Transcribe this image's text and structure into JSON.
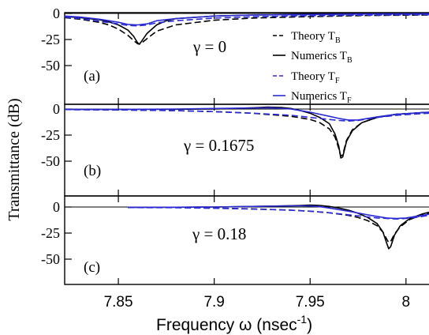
{
  "chart_data": {
    "type": "line",
    "ylabel": "Transmittance (dB)",
    "xlabel": "Frequency ω (nsec",
    "xlabel_exp": "-1",
    "xlabel_close": ")",
    "xlim": [
      7.822,
      8.012
    ],
    "x_ticks": [
      "7.85",
      "7.9",
      "7.95",
      "8"
    ],
    "x_tick_values": [
      7.85,
      7.9,
      7.95,
      8.0
    ],
    "ylim": [
      -57,
      2
    ],
    "y_ticks": [
      "0",
      "-25",
      "-50"
    ],
    "y_tick_values": [
      0,
      -25,
      -50
    ],
    "colors": {
      "theory_B": "#000000",
      "numerics_B": "#000000",
      "theory_F": "#2b2bd6",
      "numerics_F": "#2b2bd6"
    },
    "legend": {
      "placement": "top-right of panel (a)",
      "entries": [
        {
          "text": "Theory T",
          "sub": "B",
          "style": "dashed",
          "color": "#000000"
        },
        {
          "text": "Numerics T",
          "sub": "B",
          "style": "solid",
          "color": "#000000"
        },
        {
          "text": "Theory T",
          "sub": "F",
          "style": "dashed",
          "color": "#2b2bd6"
        },
        {
          "text": "Numerics T",
          "sub": "F",
          "style": "solid",
          "color": "#2b2bd6"
        }
      ]
    },
    "panels": [
      {
        "label": "(a)",
        "gamma": "γ = 0",
        "series": [
          {
            "style": "dashed",
            "color": "#000000",
            "x": [
              7.822,
              7.83,
              7.84,
              7.845,
              7.85,
              7.855,
              7.858,
              7.86,
              7.861,
              7.862,
              7.865,
              7.87,
              7.88,
              7.9,
              7.92,
              7.95,
              7.98,
              8.012
            ],
            "y": [
              -4,
              -5.5,
              -8.5,
              -11,
              -15,
              -21,
              -26,
              -29,
              -29.5,
              -28.5,
              -24,
              -17,
              -11,
              -6.5,
              -4.5,
              -3,
              -2,
              -1.5
            ]
          },
          {
            "style": "solid",
            "color": "#000000",
            "x": [
              7.822,
              7.83,
              7.84,
              7.845,
              7.85,
              7.855,
              7.858,
              7.86,
              7.861,
              7.862,
              7.865,
              7.87,
              7.875,
              7.88,
              7.9,
              7.92,
              7.95,
              7.98,
              8.012
            ],
            "y": [
              -3,
              -4,
              -6,
              -8,
              -11,
              -16,
              -22,
              -28,
              -29.5,
              -27,
              -19,
              -11,
              -7,
              -5,
              -2.5,
              -1.5,
              -1,
              -0.5,
              -0.3
            ]
          },
          {
            "style": "dashed",
            "color": "#2b2bd6",
            "x": [
              7.822,
              7.83,
              7.84,
              7.85,
              7.855,
              7.86,
              7.865,
              7.87,
              7.88,
              7.9,
              7.92,
              7.95,
              7.98,
              8.012
            ],
            "y": [
              -3.5,
              -5,
              -7.5,
              -10,
              -11.5,
              -12,
              -11,
              -9,
              -7,
              -4.5,
              -3.2,
              -2.2,
              -1.6,
              -1.2
            ]
          },
          {
            "style": "solid",
            "color": "#2b2bd6",
            "x": [
              7.822,
              7.83,
              7.84,
              7.85,
              7.855,
              7.86,
              7.865,
              7.87,
              7.88,
              7.9,
              7.92,
              7.95,
              7.98,
              8.012
            ],
            "y": [
              -2.5,
              -3.5,
              -5.5,
              -8.5,
              -10.5,
              -11,
              -10,
              -7,
              -5,
              -2.5,
              -1.5,
              -1,
              -0.5,
              -0.3
            ]
          }
        ]
      },
      {
        "label": "(b)",
        "gamma": "γ = 0.1675",
        "series": [
          {
            "style": "dashed",
            "color": "#000000",
            "x": [
              7.822,
              7.85,
              7.88,
              7.9,
              7.92,
              7.94,
              7.95,
              7.955,
              7.96,
              7.963,
              7.965,
              7.966,
              7.967,
              7.969,
              7.972,
              7.977,
              7.985,
              7.995,
              8.012
            ],
            "y": [
              -0.5,
              -0.8,
              -1.5,
              -2.5,
              -4,
              -7,
              -10,
              -13,
              -19,
              -27,
              -38,
              -45,
              -44,
              -30,
              -20,
              -13,
              -8,
              -5,
              -3
            ]
          },
          {
            "style": "solid",
            "color": "#000000",
            "x": [
              7.822,
              7.85,
              7.88,
              7.9,
              7.92,
              7.928,
              7.935,
              7.94,
              7.945,
              7.95,
              7.955,
              7.96,
              7.963,
              7.965,
              7.966,
              7.967,
              7.969,
              7.972,
              7.977,
              7.985,
              7.995,
              8.012
            ],
            "y": [
              -0.3,
              -0.3,
              -0.2,
              0,
              1.2,
              1.8,
              1.5,
              0.5,
              -1.5,
              -4,
              -8,
              -14,
              -24,
              -36,
              -47,
              -46,
              -31,
              -21,
              -13,
              -8,
              -5,
              -3
            ]
          },
          {
            "style": "dashed",
            "color": "#2b2bd6",
            "x": [
              7.822,
              7.85,
              7.88,
              7.9,
              7.92,
              7.94,
              7.95,
              7.96,
              7.965,
              7.97,
              7.975,
              7.98,
              7.985,
              7.995,
              8.012
            ],
            "y": [
              -0.5,
              -0.8,
              -1.5,
              -2.5,
              -4,
              -6,
              -8,
              -10,
              -11,
              -11.5,
              -11,
              -9.5,
              -8,
              -6,
              -4
            ]
          },
          {
            "style": "solid",
            "color": "#2b2bd6",
            "x": [
              7.822,
              7.85,
              7.88,
              7.9,
              7.92,
              7.93,
              7.94,
              7.95,
              7.96,
              7.965,
              7.97,
              7.975,
              7.98,
              7.985,
              7.995,
              8.012
            ],
            "y": [
              -0.3,
              -0.3,
              0,
              0.5,
              1,
              1.2,
              0,
              -3,
              -7,
              -9,
              -10.5,
              -10.5,
              -9,
              -7.5,
              -5,
              -3
            ]
          }
        ]
      },
      {
        "label": "(c)",
        "gamma": "γ = 0.18",
        "series": [
          {
            "style": "dashed",
            "color": "#000000",
            "x": [
              7.855,
              7.88,
              7.9,
              7.92,
              7.94,
              7.95,
              7.96,
              7.97,
              7.975,
              7.98,
              7.985,
              7.988,
              7.99,
              7.991,
              7.992,
              7.994,
              7.997,
              8.002,
              8.008,
              8.012
            ],
            "y": [
              -0.3,
              -0.5,
              -1,
              -1.8,
              -3,
              -4,
              -5.5,
              -8,
              -10,
              -13,
              -18,
              -24,
              -31,
              -34,
              -33,
              -26,
              -19,
              -12,
              -8,
              -6
            ]
          },
          {
            "style": "solid",
            "color": "#000000",
            "x": [
              7.855,
              7.88,
              7.9,
              7.92,
              7.935,
              7.945,
              7.95,
              7.955,
              7.96,
              7.965,
              7.97,
              7.975,
              7.98,
              7.985,
              7.988,
              7.99,
              7.991,
              7.992,
              7.994,
              7.997,
              8.002,
              8.008,
              8.012
            ],
            "y": [
              -0.3,
              -0.2,
              0,
              0.5,
              1,
              1.5,
              1.8,
              1.5,
              0.5,
              -1,
              -3,
              -6,
              -10,
              -16,
              -24,
              -35,
              -40,
              -38,
              -27,
              -18,
              -11,
              -7,
              -5
            ]
          },
          {
            "style": "dashed",
            "color": "#2b2bd6",
            "x": [
              7.855,
              7.88,
              7.9,
              7.92,
              7.94,
              7.95,
              7.96,
              7.97,
              7.98,
              7.985,
              7.99,
              7.995,
              8.0,
              8.005,
              8.012
            ],
            "y": [
              -0.5,
              -0.7,
              -1.2,
              -2,
              -3,
              -4,
              -5.5,
              -7.5,
              -9.5,
              -10.5,
              -11,
              -11.5,
              -11,
              -10,
              -8
            ]
          },
          {
            "style": "solid",
            "color": "#2b2bd6",
            "x": [
              7.855,
              7.88,
              7.9,
              7.92,
              7.935,
              7.945,
              7.95,
              7.955,
              7.96,
              7.97,
              7.98,
              7.985,
              7.99,
              7.995,
              8.0,
              8.005,
              8.012
            ],
            "y": [
              -0.3,
              -0.2,
              0,
              0.5,
              1,
              1.2,
              1,
              0.3,
              -1,
              -4,
              -7.5,
              -9,
              -10.5,
              -11,
              -10.5,
              -9,
              -7
            ]
          }
        ]
      }
    ]
  }
}
